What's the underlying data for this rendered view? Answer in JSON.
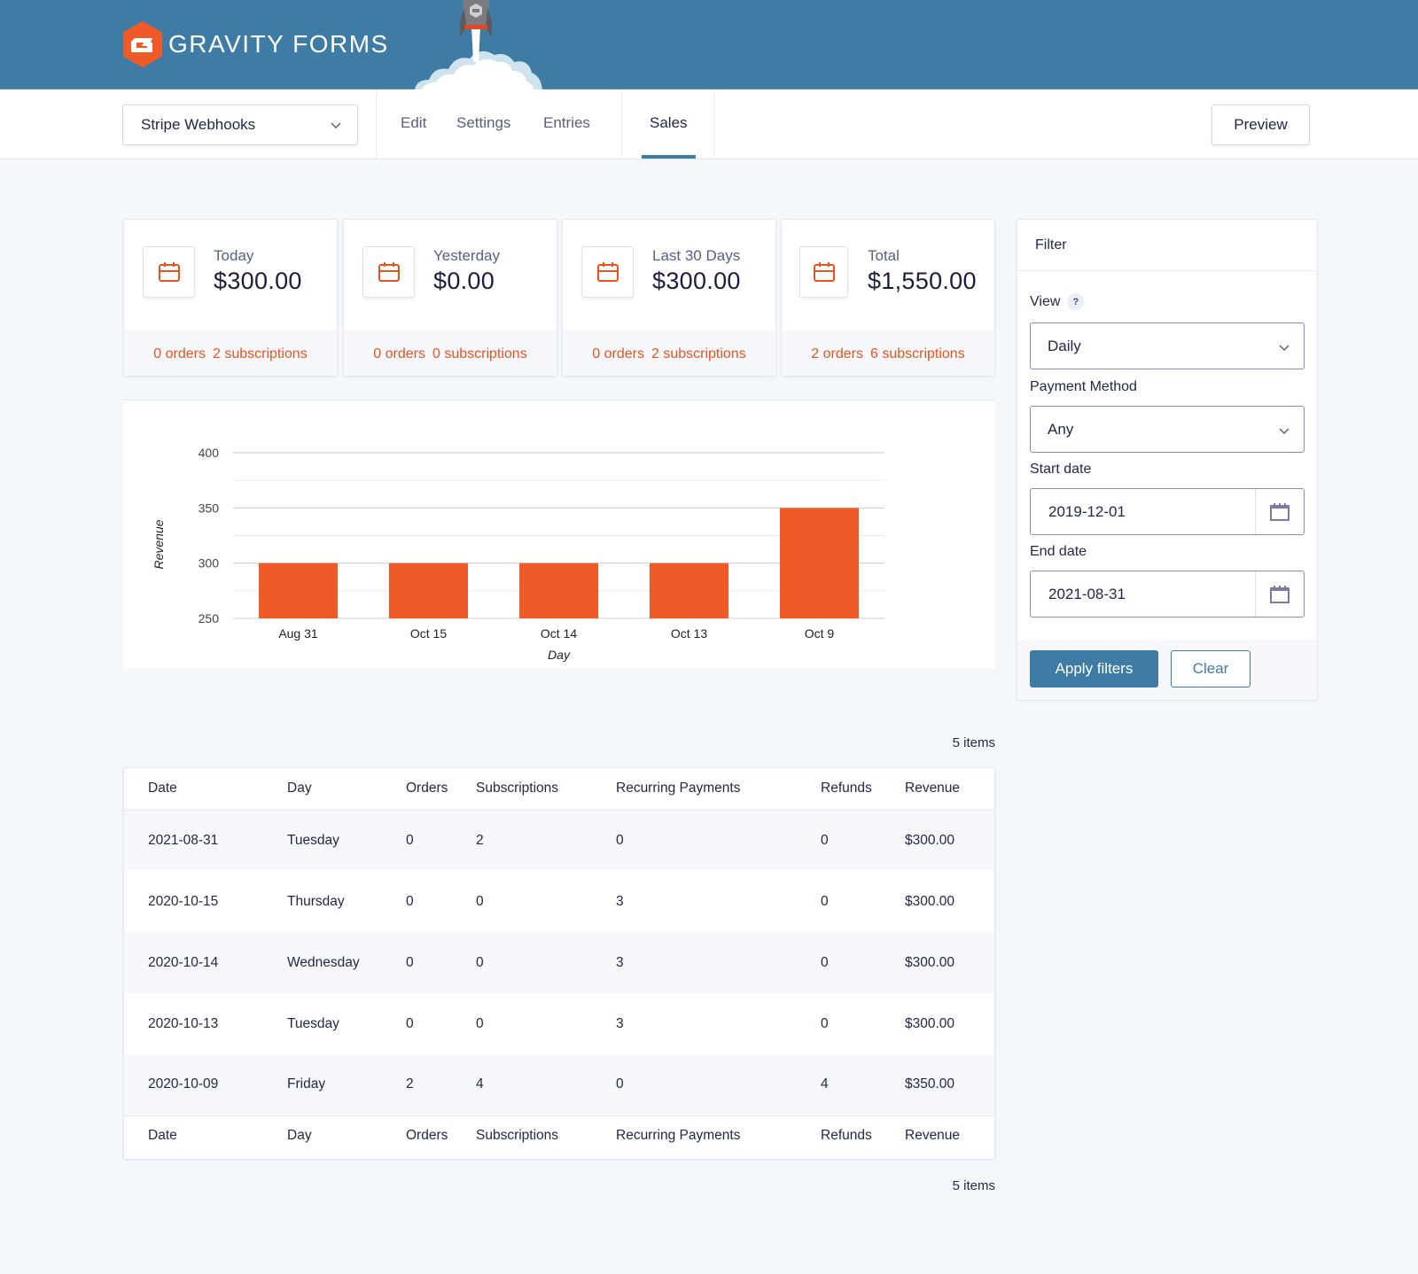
{
  "header": {
    "brand": "GRAVITY FORMS",
    "colors": {
      "banner": "#3e7ca6",
      "accent": "#e8541e",
      "primary": "#3e7ca6"
    }
  },
  "nav": {
    "form_selector": {
      "value": "Stripe Webhooks",
      "icon": "chevron-down-icon"
    },
    "links": [
      {
        "label": "Edit",
        "active": false
      },
      {
        "label": "Settings",
        "active": false
      },
      {
        "label": "Entries",
        "active": false
      },
      {
        "label": "Sales",
        "active": true
      }
    ],
    "preview_label": "Preview"
  },
  "stats": [
    {
      "label": "Today",
      "value": "$300.00",
      "orders": "0 orders",
      "subscriptions": "2 subscriptions",
      "icon": "calendar-icon"
    },
    {
      "label": "Yesterday",
      "value": "$0.00",
      "orders": "0 orders",
      "subscriptions": "0 subscriptions",
      "icon": "calendar-icon"
    },
    {
      "label": "Last 30 Days",
      "value": "$300.00",
      "orders": "0 orders",
      "subscriptions": "2 subscriptions",
      "icon": "calendar-icon"
    },
    {
      "label": "Total",
      "value": "$1,550.00",
      "orders": "2 orders",
      "subscriptions": "6 subscriptions",
      "icon": "calendar-icon"
    }
  ],
  "chart_data": {
    "type": "bar",
    "title": "",
    "categories": [
      "Aug 31",
      "Oct 15",
      "Oct 14",
      "Oct 13",
      "Oct 9"
    ],
    "values": [
      300,
      300,
      300,
      300,
      350
    ],
    "xlabel": "Day",
    "ylabel": "Revenue",
    "ylim": [
      250,
      400
    ],
    "yticks": [
      250,
      300,
      350,
      400
    ],
    "grid": true,
    "bar_color": "#f05a28",
    "legend": null
  },
  "filter": {
    "title": "Filter",
    "view": {
      "label": "View",
      "help": "?",
      "value": "Daily"
    },
    "payment_method": {
      "label": "Payment Method",
      "value": "Any"
    },
    "start_date": {
      "label": "Start date",
      "value": "2019-12-01"
    },
    "end_date": {
      "label": "End date",
      "value": "2021-08-31"
    },
    "apply_label": "Apply filters",
    "clear_label": "Clear"
  },
  "table": {
    "count_top": "5 items",
    "count_bottom": "5 items",
    "columns": [
      "Date",
      "Day",
      "Orders",
      "Subscriptions",
      "Recurring Payments",
      "Refunds",
      "Revenue"
    ],
    "rows": [
      [
        "2021-08-31",
        "Tuesday",
        "0",
        "2",
        "0",
        "0",
        "$300.00"
      ],
      [
        "2020-10-15",
        "Thursday",
        "0",
        "0",
        "3",
        "0",
        "$300.00"
      ],
      [
        "2020-10-14",
        "Wednesday",
        "0",
        "0",
        "3",
        "0",
        "$300.00"
      ],
      [
        "2020-10-13",
        "Tuesday",
        "0",
        "0",
        "3",
        "0",
        "$300.00"
      ],
      [
        "2020-10-09",
        "Friday",
        "2",
        "4",
        "0",
        "4",
        "$350.00"
      ]
    ]
  }
}
